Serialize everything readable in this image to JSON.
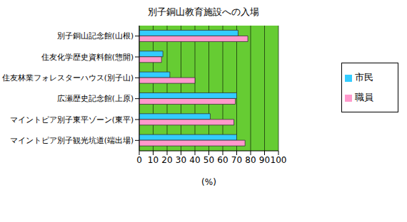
{
  "chart_data": {
    "type": "bar",
    "title": "別子銅山教育施設への入場",
    "orientation": "horizontal",
    "x_label": "(%)",
    "categories": [
      "別子銅山記念館(山根)",
      "住友化学歴史資料館(惣開)",
      "住友林業フォレスターハウス(別子山)",
      "広瀬歴史記念館(上原)",
      "マイントピア別子東平ゾーン(東平)",
      "マイントピア別子観光坑道(端出場)"
    ],
    "series": [
      {
        "name": "市民",
        "color": "#33ccff",
        "values": [
          71,
          17,
          22,
          70,
          51,
          70
        ]
      },
      {
        "name": "職員",
        "color": "#ff99cc",
        "values": [
          78,
          16,
          40,
          69,
          68,
          76
        ]
      }
    ],
    "xlim": [
      0,
      100
    ],
    "xticks": [
      0,
      10,
      20,
      30,
      40,
      50,
      60,
      70,
      80,
      90,
      100
    ],
    "grid": true,
    "legend": "right"
  }
}
